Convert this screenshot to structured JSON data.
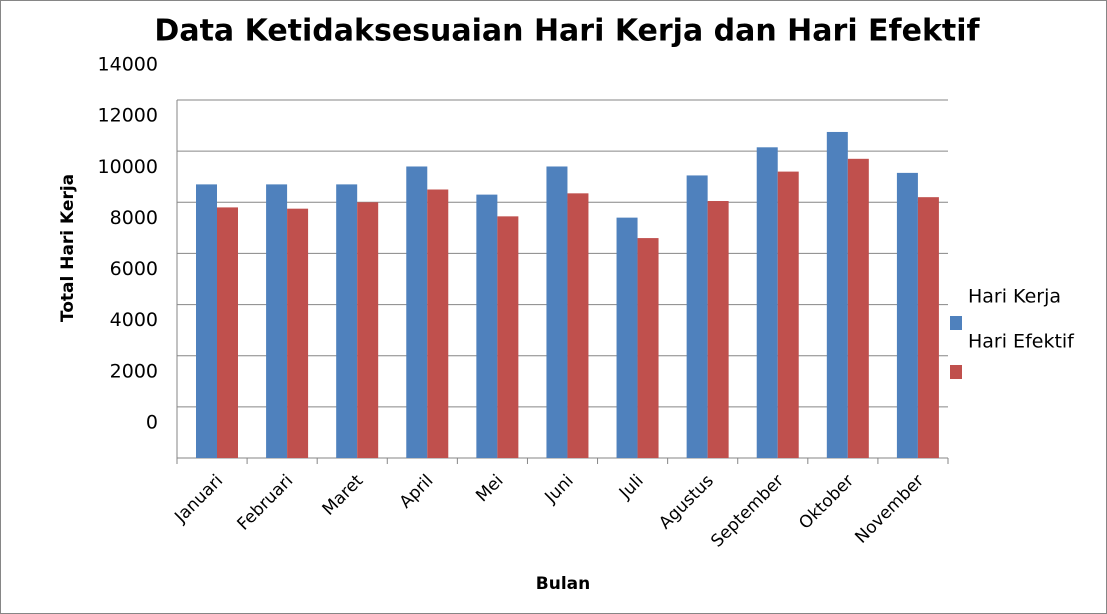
{
  "chart_data": {
    "type": "bar",
    "title": "Data Ketidaksesuaian Hari Kerja dan Hari Efektif",
    "x_label": "Bulan",
    "y_label": "Total Hari Kerja",
    "categories": [
      "Januari",
      "Februari",
      "Maret",
      "April",
      "Mei",
      "Juni",
      "Juli",
      "Agustus",
      "September",
      "Oktober",
      "November"
    ],
    "series": [
      {
        "name": "Hari Kerja",
        "color": "#4f81bd",
        "values": [
          10700,
          10700,
          10700,
          11400,
          10300,
          11400,
          9400,
          11050,
          12150,
          12750,
          11150
        ]
      },
      {
        "name": "Hari Efektif",
        "color": "#c0504d",
        "values": [
          9800,
          9750,
          10000,
          10500,
          9450,
          10350,
          8600,
          10050,
          11200,
          11700,
          10200
        ]
      }
    ],
    "ylim": [
      0,
      14000
    ],
    "yticks": [
      0,
      2000,
      4000,
      6000,
      8000,
      10000,
      12000,
      14000
    ],
    "grid": true,
    "legend": "right"
  }
}
